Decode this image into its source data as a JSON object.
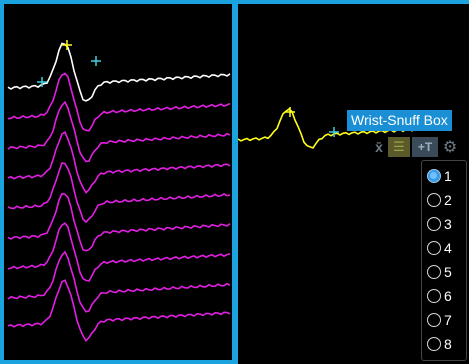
{
  "colors": {
    "frame": "#1aa3de",
    "active_trace": "#ffffff",
    "other_traces": "#e21fe2",
    "preview_trace": "#ffff1a",
    "markers": "#3fd0e0",
    "peak_marker": "#ffff1a"
  },
  "right_panel": {
    "site_label": "Wrist-Snuff Box"
  },
  "toolbar": {
    "x_label": "x̄",
    "list_icon": "list-icon",
    "plus_t_label": "+T",
    "gear_icon": "gear-icon"
  },
  "trace_selector": {
    "selected": "1",
    "options": [
      "1",
      "2",
      "3",
      "4",
      "5",
      "6",
      "7",
      "8"
    ]
  }
}
